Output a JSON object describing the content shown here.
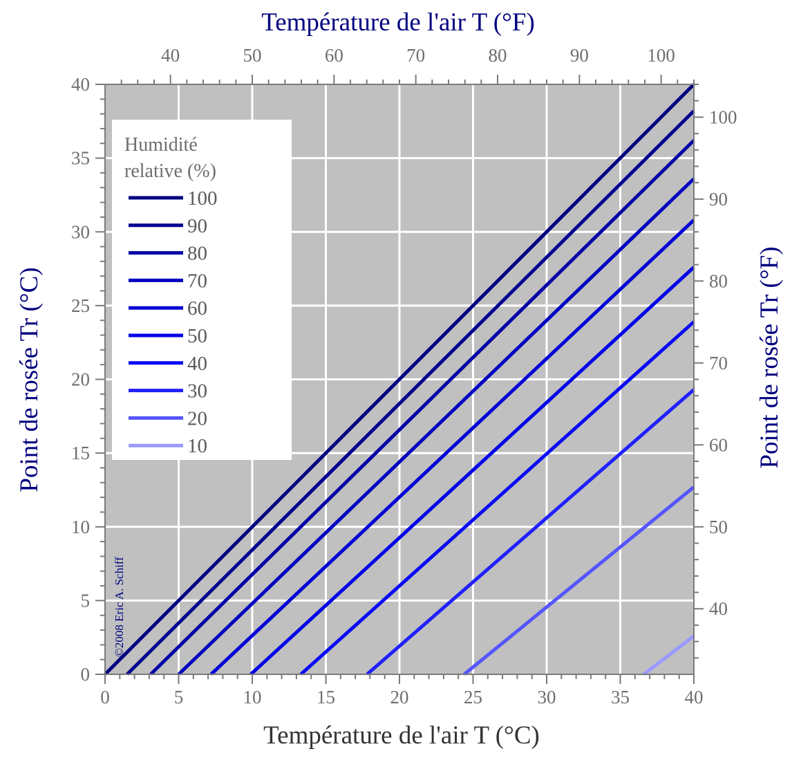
{
  "chart_data": {
    "type": "line",
    "title": "",
    "xlabel": "Température de l'air  T (°C)",
    "x2label": "Température de l'air  T (°F)",
    "ylabel": "Point de rosée  Tr (°C)",
    "y2label": "Point de rosée  Tr (°F)",
    "xlim": [
      0,
      40
    ],
    "ylim": [
      0,
      40
    ],
    "x_ticks": [
      0,
      5,
      10,
      15,
      20,
      25,
      30,
      35,
      40
    ],
    "y_ticks": [
      0,
      5,
      10,
      15,
      20,
      25,
      30,
      35,
      40
    ],
    "x2_ticks_F": [
      40,
      50,
      60,
      70,
      80,
      90,
      100
    ],
    "y2_ticks_F": [
      40,
      50,
      60,
      70,
      80,
      90,
      100
    ],
    "grid": true,
    "legend": {
      "title_line1": "Humidité",
      "title_line2": "relative (%)",
      "position": "top-left"
    },
    "copyright": "©2008 Eric A. Schiff",
    "series": [
      {
        "name": "100",
        "rh": 100,
        "color": "#000080",
        "x": [
          0,
          40
        ],
        "y": [
          0,
          40
        ]
      },
      {
        "name": "90",
        "rh": 90,
        "color": "#00008f",
        "x": [
          1.5,
          40
        ],
        "y": [
          0,
          38.2
        ]
      },
      {
        "name": "80",
        "rh": 80,
        "color": "#0000a6",
        "x": [
          3.1,
          40
        ],
        "y": [
          0,
          36.2
        ]
      },
      {
        "name": "70",
        "rh": 70,
        "color": "#0000c0",
        "x": [
          5.0,
          40
        ],
        "y": [
          0,
          33.6
        ]
      },
      {
        "name": "60",
        "rh": 60,
        "color": "#0000d6",
        "x": [
          7.2,
          40
        ],
        "y": [
          0,
          30.8
        ]
      },
      {
        "name": "50",
        "rh": 50,
        "color": "#0000e8",
        "x": [
          9.9,
          40
        ],
        "y": [
          0,
          27.6
        ]
      },
      {
        "name": "40",
        "rh": 40,
        "color": "#0a0af5",
        "x": [
          13.3,
          40
        ],
        "y": [
          0,
          23.9
        ]
      },
      {
        "name": "30",
        "rh": 30,
        "color": "#2020ff",
        "x": [
          17.8,
          40
        ],
        "y": [
          0,
          19.3
        ]
      },
      {
        "name": "20",
        "rh": 20,
        "color": "#5555ff",
        "x": [
          24.4,
          40
        ],
        "y": [
          0,
          12.7
        ]
      },
      {
        "name": "10",
        "rh": 10,
        "color": "#9999ff",
        "x": [
          36.6,
          40
        ],
        "y": [
          0,
          2.6
        ]
      }
    ]
  }
}
